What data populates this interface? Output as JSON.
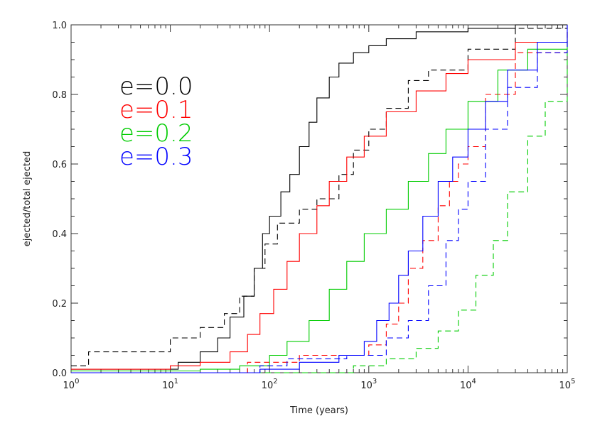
{
  "chart_data": {
    "type": "line",
    "xlabel": "Time (years)",
    "ylabel": "ejected/total ejected",
    "xscale": "log",
    "xlim": [
      1,
      100000
    ],
    "ylim": [
      0,
      1.0
    ],
    "x_ticks": [
      {
        "value": 1,
        "base": "10",
        "exp": "0"
      },
      {
        "value": 10,
        "base": "10",
        "exp": "1"
      },
      {
        "value": 100,
        "base": "10",
        "exp": "2"
      },
      {
        "value": 1000,
        "base": "10",
        "exp": "3"
      },
      {
        "value": 10000,
        "base": "10",
        "exp": "4"
      },
      {
        "value": 100000,
        "base": "10",
        "exp": "5"
      }
    ],
    "y_ticks": [
      {
        "value": 0.0,
        "label": "0.0"
      },
      {
        "value": 0.2,
        "label": "0.2"
      },
      {
        "value": 0.4,
        "label": "0.4"
      },
      {
        "value": 0.6,
        "label": "0.6"
      },
      {
        "value": 0.8,
        "label": "0.8"
      },
      {
        "value": 1.0,
        "label": "1.0"
      }
    ],
    "legend": {
      "placement": "upper-left",
      "entries": [
        {
          "label": "e=0.0",
          "color": "#000000"
        },
        {
          "label": "e=0.1",
          "color": "#ff0000"
        },
        {
          "label": "e=0.2",
          "color": "#00cc00"
        },
        {
          "label": "e=0.3",
          "color": "#0000ff"
        }
      ]
    },
    "series": [
      {
        "color": "#000000",
        "style": "solid",
        "points": [
          [
            1,
            0.01
          ],
          [
            8,
            0.01
          ],
          [
            12,
            0.03
          ],
          [
            20,
            0.06
          ],
          [
            30,
            0.1
          ],
          [
            40,
            0.16
          ],
          [
            55,
            0.22
          ],
          [
            70,
            0.3
          ],
          [
            85,
            0.4
          ],
          [
            100,
            0.45
          ],
          [
            130,
            0.52
          ],
          [
            160,
            0.57
          ],
          [
            200,
            0.65
          ],
          [
            250,
            0.72
          ],
          [
            300,
            0.79
          ],
          [
            400,
            0.85
          ],
          [
            500,
            0.89
          ],
          [
            700,
            0.92
          ],
          [
            1000,
            0.94
          ],
          [
            1500,
            0.96
          ],
          [
            3000,
            0.98
          ],
          [
            10000,
            0.99
          ],
          [
            30000,
            1.0
          ],
          [
            100000,
            1.0
          ]
        ]
      },
      {
        "color": "#000000",
        "style": "dashed",
        "points": [
          [
            1,
            0.02
          ],
          [
            1.5,
            0.06
          ],
          [
            5,
            0.06
          ],
          [
            10,
            0.1
          ],
          [
            20,
            0.13
          ],
          [
            35,
            0.17
          ],
          [
            50,
            0.22
          ],
          [
            70,
            0.3
          ],
          [
            90,
            0.37
          ],
          [
            120,
            0.43
          ],
          [
            200,
            0.47
          ],
          [
            300,
            0.5
          ],
          [
            500,
            0.57
          ],
          [
            700,
            0.64
          ],
          [
            1000,
            0.7
          ],
          [
            1500,
            0.76
          ],
          [
            2500,
            0.84
          ],
          [
            4000,
            0.87
          ],
          [
            10000,
            0.93
          ],
          [
            30000,
            0.99
          ],
          [
            100000,
            1.0
          ]
        ]
      },
      {
        "color": "#ff0000",
        "style": "solid",
        "points": [
          [
            1,
            0.01
          ],
          [
            10,
            0.02
          ],
          [
            20,
            0.03
          ],
          [
            40,
            0.06
          ],
          [
            60,
            0.11
          ],
          [
            80,
            0.17
          ],
          [
            110,
            0.24
          ],
          [
            150,
            0.32
          ],
          [
            200,
            0.4
          ],
          [
            300,
            0.48
          ],
          [
            400,
            0.55
          ],
          [
            600,
            0.62
          ],
          [
            900,
            0.68
          ],
          [
            1500,
            0.75
          ],
          [
            3000,
            0.81
          ],
          [
            6000,
            0.86
          ],
          [
            10000,
            0.9
          ],
          [
            30000,
            0.95
          ],
          [
            100000,
            0.98
          ]
        ]
      },
      {
        "color": "#ff0000",
        "style": "dashed",
        "points": [
          [
            1,
            0.0
          ],
          [
            30,
            0.0
          ],
          [
            60,
            0.03
          ],
          [
            200,
            0.05
          ],
          [
            600,
            0.05
          ],
          [
            1000,
            0.08
          ],
          [
            1500,
            0.14
          ],
          [
            2000,
            0.2
          ],
          [
            2500,
            0.3
          ],
          [
            3500,
            0.38
          ],
          [
            5000,
            0.48
          ],
          [
            6500,
            0.55
          ],
          [
            8000,
            0.6
          ],
          [
            10000,
            0.65
          ],
          [
            15000,
            0.8
          ],
          [
            30000,
            0.92
          ],
          [
            100000,
            0.99
          ]
        ]
      },
      {
        "color": "#00cc00",
        "style": "solid",
        "points": [
          [
            1,
            0.005
          ],
          [
            20,
            0.01
          ],
          [
            50,
            0.02
          ],
          [
            100,
            0.05
          ],
          [
            150,
            0.09
          ],
          [
            250,
            0.15
          ],
          [
            400,
            0.24
          ],
          [
            600,
            0.32
          ],
          [
            900,
            0.4
          ],
          [
            1500,
            0.47
          ],
          [
            2500,
            0.55
          ],
          [
            4000,
            0.63
          ],
          [
            6000,
            0.7
          ],
          [
            10000,
            0.78
          ],
          [
            20000,
            0.87
          ],
          [
            40000,
            0.93
          ],
          [
            100000,
            0.98
          ]
        ]
      },
      {
        "color": "#00cc00",
        "style": "dashed",
        "points": [
          [
            1,
            0.0
          ],
          [
            100,
            0.0
          ],
          [
            300,
            0.0
          ],
          [
            700,
            0.02
          ],
          [
            1500,
            0.04
          ],
          [
            3000,
            0.07
          ],
          [
            5000,
            0.12
          ],
          [
            8000,
            0.18
          ],
          [
            12000,
            0.28
          ],
          [
            18000,
            0.38
          ],
          [
            25000,
            0.52
          ],
          [
            40000,
            0.68
          ],
          [
            60000,
            0.78
          ],
          [
            100000,
            0.95
          ]
        ]
      },
      {
        "color": "#0000ff",
        "style": "solid",
        "points": [
          [
            1,
            0.0
          ],
          [
            40,
            0.0
          ],
          [
            80,
            0.01
          ],
          [
            200,
            0.03
          ],
          [
            500,
            0.05
          ],
          [
            900,
            0.09
          ],
          [
            1200,
            0.15
          ],
          [
            1600,
            0.2
          ],
          [
            2000,
            0.28
          ],
          [
            2500,
            0.35
          ],
          [
            3500,
            0.45
          ],
          [
            5000,
            0.55
          ],
          [
            7000,
            0.62
          ],
          [
            10000,
            0.7
          ],
          [
            15000,
            0.78
          ],
          [
            25000,
            0.87
          ],
          [
            50000,
            0.95
          ],
          [
            100000,
            1.0
          ]
        ]
      },
      {
        "color": "#0000ff",
        "style": "dashed",
        "points": [
          [
            1,
            0.0
          ],
          [
            50,
            0.0
          ],
          [
            80,
            0.02
          ],
          [
            150,
            0.04
          ],
          [
            600,
            0.05
          ],
          [
            900,
            0.05
          ],
          [
            1500,
            0.1
          ],
          [
            2500,
            0.15
          ],
          [
            4000,
            0.25
          ],
          [
            6000,
            0.38
          ],
          [
            8000,
            0.47
          ],
          [
            10000,
            0.55
          ],
          [
            15000,
            0.7
          ],
          [
            25000,
            0.82
          ],
          [
            50000,
            0.92
          ],
          [
            100000,
            0.99
          ]
        ]
      }
    ]
  }
}
